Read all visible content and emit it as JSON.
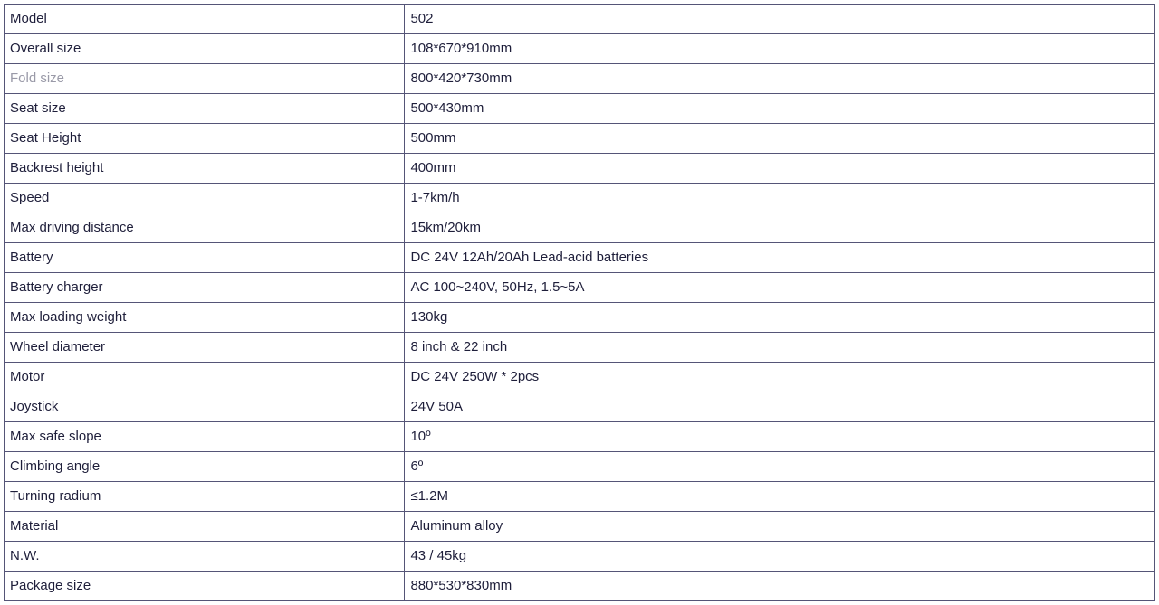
{
  "spec_table": {
    "type": "table",
    "text_color": "#1e1e3a",
    "border_color": "#555577",
    "background_color": "#ffffff",
    "font_family": "Verdana",
    "font_size_pt": 11,
    "column_widths_pct": [
      34.5,
      65.5
    ],
    "fold_row_label_color": "#9a9aa8",
    "rows": [
      {
        "label": "Model",
        "value": "502"
      },
      {
        "label": "Overall size",
        "value": "108*670*910mm"
      },
      {
        "label": "Fold size",
        "value": "800*420*730mm",
        "label_muted": true
      },
      {
        "label": "Seat size",
        "value": "500*430mm"
      },
      {
        "label": "Seat Height",
        "value": "500mm"
      },
      {
        "label": "Backrest height",
        "value": "400mm"
      },
      {
        "label": "Speed",
        "value": "1-7km/h"
      },
      {
        "label": "Max driving distance",
        "value": "15km/20km"
      },
      {
        "label": "Battery",
        "value": "DC 24V 12Ah/20Ah Lead-acid batteries"
      },
      {
        "label": "Battery charger",
        "value": "AC 100~240V, 50Hz, 1.5~5A"
      },
      {
        "label": "Max loading weight",
        "value": "130kg"
      },
      {
        "label": "Wheel diameter",
        "value": "8 inch & 22 inch"
      },
      {
        "label": "Motor",
        "value": "DC 24V 250W * 2pcs"
      },
      {
        "label": "Joystick",
        "value": "24V 50A"
      },
      {
        "label": "Max safe slope",
        "value": "10º"
      },
      {
        "label": "Climbing angle",
        "value": "6º"
      },
      {
        "label": "Turning radium",
        "value": "≤1.2M"
      },
      {
        "label": "Material",
        "value": "Aluminum alloy"
      },
      {
        "label": "N.W.",
        "value": "43 / 45kg"
      },
      {
        "label": "Package size",
        "value": "880*530*830mm"
      }
    ]
  }
}
